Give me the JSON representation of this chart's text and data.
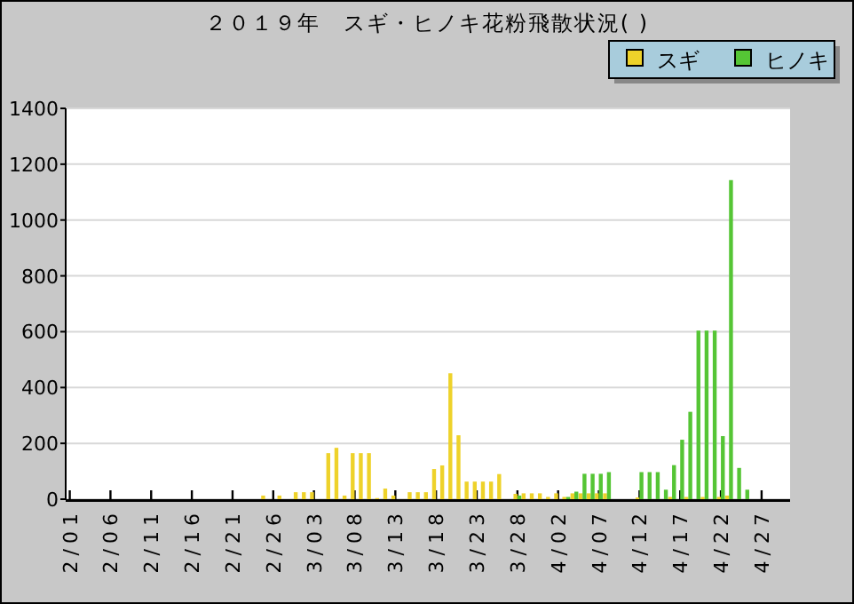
{
  "chart_data": {
    "type": "bar",
    "title": "２０１９年　スギ・ヒノキ花粉飛散状況( )",
    "categories": [
      "2/01",
      null,
      null,
      null,
      null,
      "2/06",
      null,
      null,
      null,
      null,
      "2/11",
      null,
      null,
      null,
      null,
      "2/16",
      null,
      null,
      null,
      null,
      "2/21",
      null,
      null,
      null,
      null,
      "2/26",
      null,
      null,
      null,
      null,
      "3/03",
      null,
      null,
      null,
      null,
      "3/08",
      null,
      null,
      null,
      null,
      "3/13",
      null,
      null,
      null,
      null,
      "3/18",
      null,
      null,
      null,
      null,
      "3/23",
      null,
      null,
      null,
      null,
      "3/28",
      null,
      null,
      null,
      null,
      "4/02",
      null,
      null,
      null,
      null,
      "4/07",
      null,
      null,
      null,
      null,
      "4/12",
      null,
      null,
      null,
      null,
      "4/17",
      null,
      null,
      null,
      null,
      "4/22",
      null,
      null,
      null,
      null,
      "4/27",
      null,
      null,
      null
    ],
    "series": [
      {
        "name": "スギ",
        "color": "#eed22a",
        "values": [
          0,
          0,
          0,
          0,
          0,
          0,
          0,
          0,
          0,
          0,
          0,
          0,
          0,
          0,
          0,
          0,
          0,
          0,
          0,
          0,
          0,
          0,
          0,
          0,
          13,
          0,
          13,
          0,
          25,
          25,
          25,
          0,
          165,
          184,
          13,
          165,
          165,
          165,
          4,
          38,
          13,
          0,
          25,
          25,
          25,
          108,
          121,
          451,
          229,
          63,
          63,
          63,
          63,
          90,
          0,
          19,
          21,
          21,
          21,
          8,
          21,
          8,
          21,
          21,
          21,
          21,
          21,
          0,
          0,
          0,
          6,
          0,
          0,
          0,
          8,
          0,
          8,
          0,
          8,
          0,
          8,
          13,
          0,
          0,
          0,
          0,
          0,
          0,
          0
        ]
      },
      {
        "name": "ヒノキ",
        "color": "#55c535",
        "values": [
          0,
          0,
          0,
          0,
          0,
          0,
          0,
          0,
          0,
          0,
          0,
          0,
          0,
          0,
          0,
          0,
          0,
          0,
          0,
          0,
          0,
          0,
          0,
          0,
          0,
          0,
          0,
          0,
          0,
          0,
          0,
          0,
          0,
          0,
          0,
          0,
          0,
          0,
          0,
          0,
          0,
          0,
          0,
          0,
          0,
          0,
          0,
          0,
          0,
          0,
          0,
          0,
          0,
          0,
          0,
          13,
          0,
          0,
          0,
          0,
          0,
          8,
          27,
          91,
          91,
          91,
          97,
          0,
          0,
          0,
          97,
          97,
          97,
          34,
          122,
          213,
          313,
          604,
          604,
          604,
          226,
          1143,
          112,
          34,
          0,
          0,
          0,
          0,
          0
        ]
      }
    ],
    "ylim": [
      0,
      1400
    ],
    "yticks": [
      0,
      200,
      400,
      600,
      800,
      1000,
      1200,
      1400
    ],
    "grid": "y",
    "legend": "top right"
  }
}
